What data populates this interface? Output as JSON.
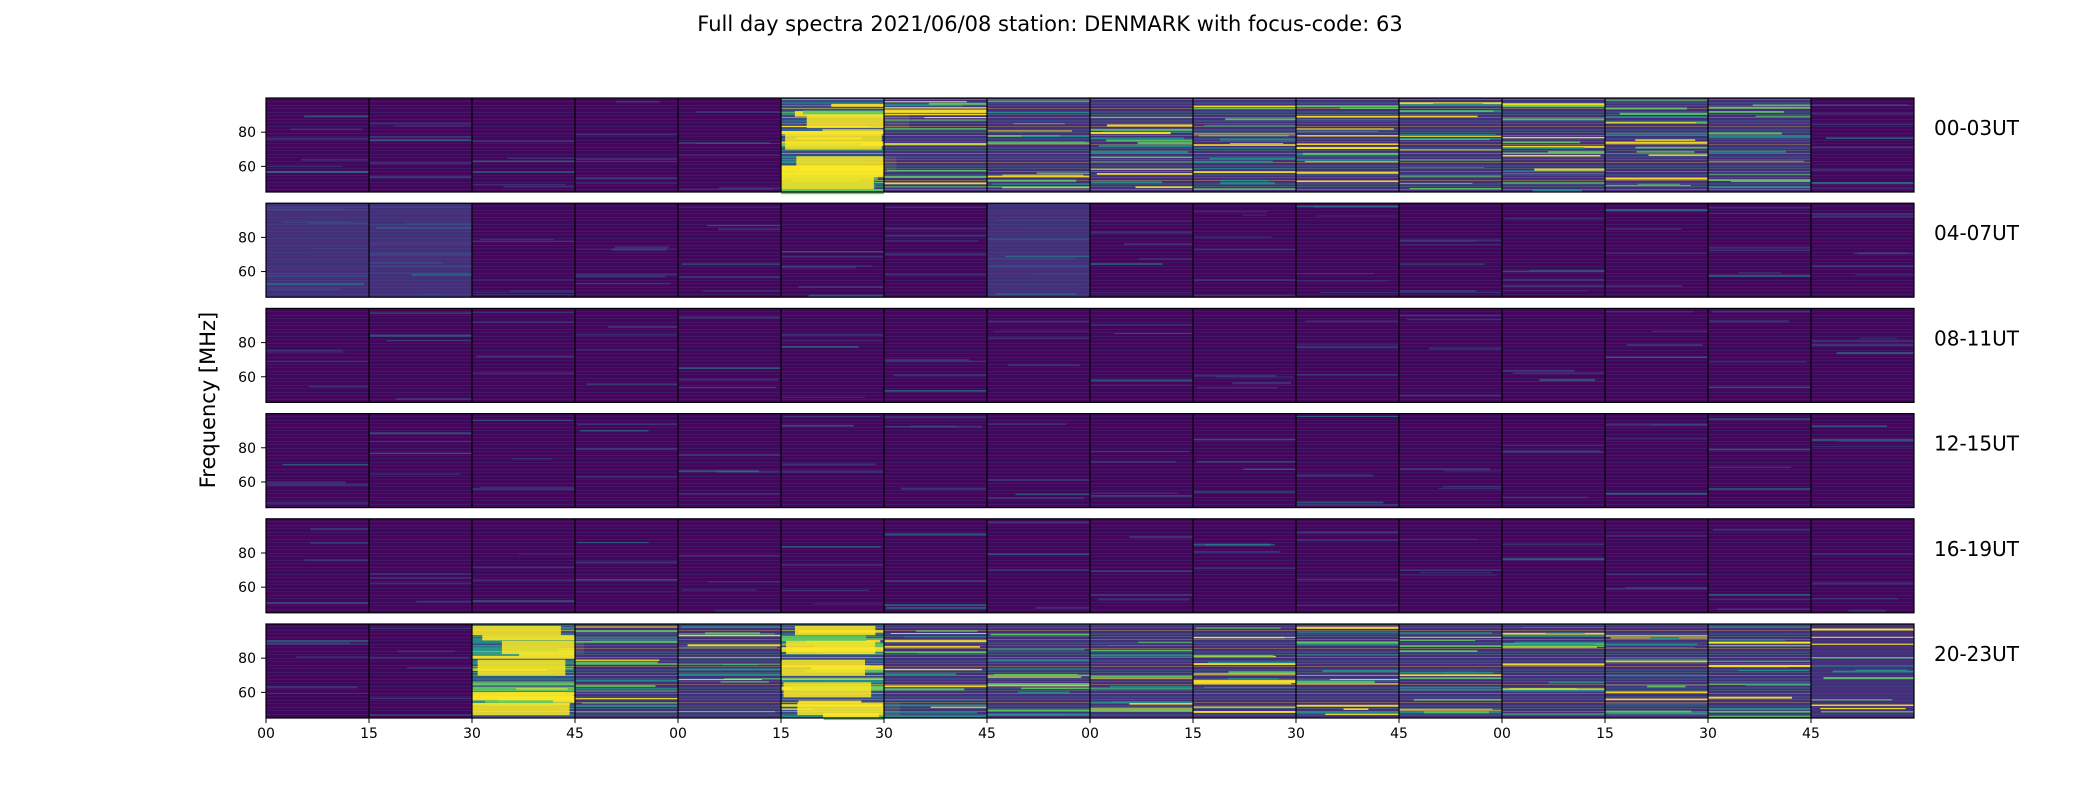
{
  "title": "Full day spectra 2021/06/08 station: DENMARK with focus-code: 63",
  "ylabel": "Frequency [MHz]",
  "colormap": [
    "#440154",
    "#3b528b",
    "#21918c",
    "#5ec962",
    "#fde725"
  ],
  "chart_data": {
    "type": "heatmap",
    "title": "Full day spectra 2021/06/08 station: DENMARK with focus-code: 63",
    "ylabel": "Frequency [MHz]",
    "xlabel": "",
    "rows": [
      "00-03UT",
      "04-07UT",
      "08-11UT",
      "12-15UT",
      "16-19UT",
      "20-23UT"
    ],
    "x_tick_labels": [
      "00",
      "15",
      "30",
      "45",
      "00",
      "15",
      "30",
      "45",
      "00",
      "15",
      "30",
      "45",
      "00",
      "15",
      "30",
      "45"
    ],
    "y_ticks": [
      60,
      80
    ],
    "ylim": [
      45,
      100
    ],
    "segments_per_row": 16,
    "segment_minutes": 15,
    "activity": [
      [
        0.15,
        0.15,
        0.12,
        0.15,
        0.12,
        0.85,
        0.55,
        0.45,
        0.5,
        0.55,
        0.55,
        0.5,
        0.5,
        0.5,
        0.45,
        0.25
      ],
      [
        0.3,
        0.35,
        0.1,
        0.1,
        0.1,
        0.1,
        0.1,
        0.3,
        0.1,
        0.1,
        0.1,
        0.1,
        0.1,
        0.1,
        0.1,
        0.1
      ],
      [
        0.05,
        0.05,
        0.05,
        0.05,
        0.05,
        0.05,
        0.05,
        0.05,
        0.05,
        0.05,
        0.05,
        0.05,
        0.05,
        0.05,
        0.05,
        0.05
      ],
      [
        0.05,
        0.05,
        0.05,
        0.05,
        0.05,
        0.05,
        0.05,
        0.05,
        0.05,
        0.05,
        0.05,
        0.05,
        0.05,
        0.05,
        0.05,
        0.05
      ],
      [
        0.05,
        0.05,
        0.05,
        0.05,
        0.05,
        0.05,
        0.05,
        0.05,
        0.05,
        0.05,
        0.05,
        0.05,
        0.05,
        0.05,
        0.05,
        0.05
      ],
      [
        0.1,
        0.1,
        0.9,
        0.5,
        0.45,
        0.85,
        0.5,
        0.5,
        0.5,
        0.5,
        0.5,
        0.5,
        0.5,
        0.5,
        0.5,
        0.4
      ]
    ]
  }
}
